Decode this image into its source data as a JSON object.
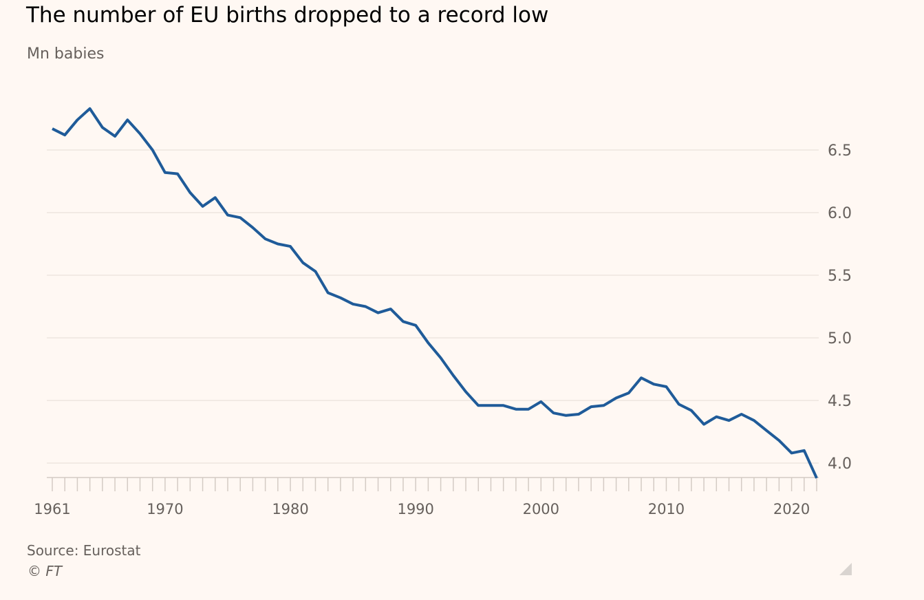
{
  "header": {
    "title": "The number of EU births dropped to a record low",
    "subtitle": "Mn babies"
  },
  "footer": {
    "source": "Source: Eurostat",
    "copyright": "© FT"
  },
  "icons": {
    "resize": "resize-corner-icon"
  },
  "colors": {
    "background": "#fff8f3",
    "line": "#1f5b99",
    "grid": "#e6ddd6",
    "axis": "#d4cbc4",
    "tick_text": "#66605c"
  },
  "chart_data": {
    "type": "line",
    "title": "The number of EU births dropped to a record low",
    "subtitle": "Mn babies",
    "xlabel": "",
    "ylabel": "",
    "xlim": [
      1961,
      2022
    ],
    "ylim": [
      3.88,
      6.9
    ],
    "x_tick_labels": [
      "1961",
      "1970",
      "1980",
      "1990",
      "2000",
      "2010",
      "2020"
    ],
    "x_tick_values": [
      1961,
      1970,
      1980,
      1990,
      2000,
      2010,
      2020
    ],
    "y_tick_labels": [
      "4.0",
      "4.5",
      "5.0",
      "5.5",
      "6.0",
      "6.5"
    ],
    "y_tick_values": [
      4.0,
      4.5,
      5.0,
      5.5,
      6.0,
      6.5
    ],
    "y_axis_side": "right",
    "grid": "horizontal",
    "legend": "none",
    "series": [
      {
        "x": [
          1961,
          1962,
          1963,
          1964,
          1965,
          1966,
          1967,
          1968,
          1969,
          1970,
          1971,
          1972,
          1973,
          1974,
          1975,
          1976,
          1977,
          1978,
          1979,
          1980,
          1981,
          1982,
          1983,
          1984,
          1985,
          1986,
          1987,
          1988,
          1989,
          1990,
          1991,
          1992,
          1993,
          1994,
          1995,
          1996,
          1997,
          1998,
          1999,
          2000,
          2001,
          2002,
          2003,
          2004,
          2005,
          2006,
          2007,
          2008,
          2009,
          2010,
          2011,
          2012,
          2013,
          2014,
          2015,
          2016,
          2017,
          2018,
          2019,
          2020,
          2021,
          2022
        ],
        "values": [
          6.67,
          6.62,
          6.74,
          6.83,
          6.68,
          6.61,
          6.74,
          6.63,
          6.5,
          6.32,
          6.31,
          6.16,
          6.05,
          6.12,
          5.98,
          5.96,
          5.88,
          5.79,
          5.75,
          5.73,
          5.6,
          5.53,
          5.36,
          5.32,
          5.27,
          5.25,
          5.2,
          5.23,
          5.13,
          5.1,
          4.96,
          4.84,
          4.7,
          4.57,
          4.46,
          4.46,
          4.46,
          4.43,
          4.43,
          4.49,
          4.4,
          4.38,
          4.39,
          4.45,
          4.46,
          4.52,
          4.56,
          4.68,
          4.63,
          4.61,
          4.47,
          4.42,
          4.31,
          4.37,
          4.34,
          4.39,
          4.34,
          4.26,
          4.18,
          4.08,
          4.1,
          3.88
        ]
      }
    ]
  }
}
